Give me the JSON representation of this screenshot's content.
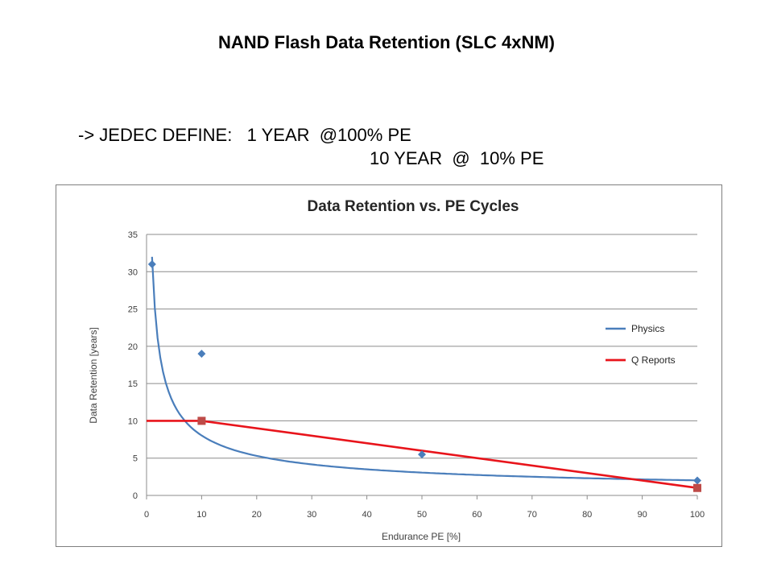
{
  "slide": {
    "title": "NAND Flash Data Retention (SLC 4xNM)",
    "note_line1": "-> JEDEC DEFINE:   1 YEAR  @100% PE",
    "note_line2": "10 YEAR  @  10% PE"
  },
  "chart_data": {
    "type": "line",
    "title": "Data Retention vs. PE Cycles",
    "xlabel": "Endurance PE [%]",
    "ylabel": "Data Retention [years]",
    "xlim": [
      0,
      100
    ],
    "ylim": [
      0,
      35
    ],
    "xticks": [
      0,
      10,
      20,
      30,
      40,
      50,
      60,
      70,
      80,
      90,
      100
    ],
    "yticks": [
      0,
      5,
      10,
      15,
      20,
      25,
      30,
      35
    ],
    "grid": "horizontal",
    "legend_position": "right",
    "series": [
      {
        "name": "Physics",
        "color": "#4a7ebb",
        "marker": "diamond",
        "points": [
          [
            1,
            31
          ],
          [
            10,
            19
          ],
          [
            50,
            5.5
          ],
          [
            100,
            2
          ]
        ],
        "trend": "power",
        "trend_coef": 32,
        "trend_exp": -0.6
      },
      {
        "name": "Q Reports",
        "color": "#e8141b",
        "marker": "square",
        "marker_color": "#be4b48",
        "points": [
          [
            10,
            10
          ],
          [
            100,
            1
          ]
        ],
        "line": [
          [
            0,
            10
          ],
          [
            10,
            10
          ],
          [
            100,
            1
          ]
        ]
      }
    ]
  }
}
